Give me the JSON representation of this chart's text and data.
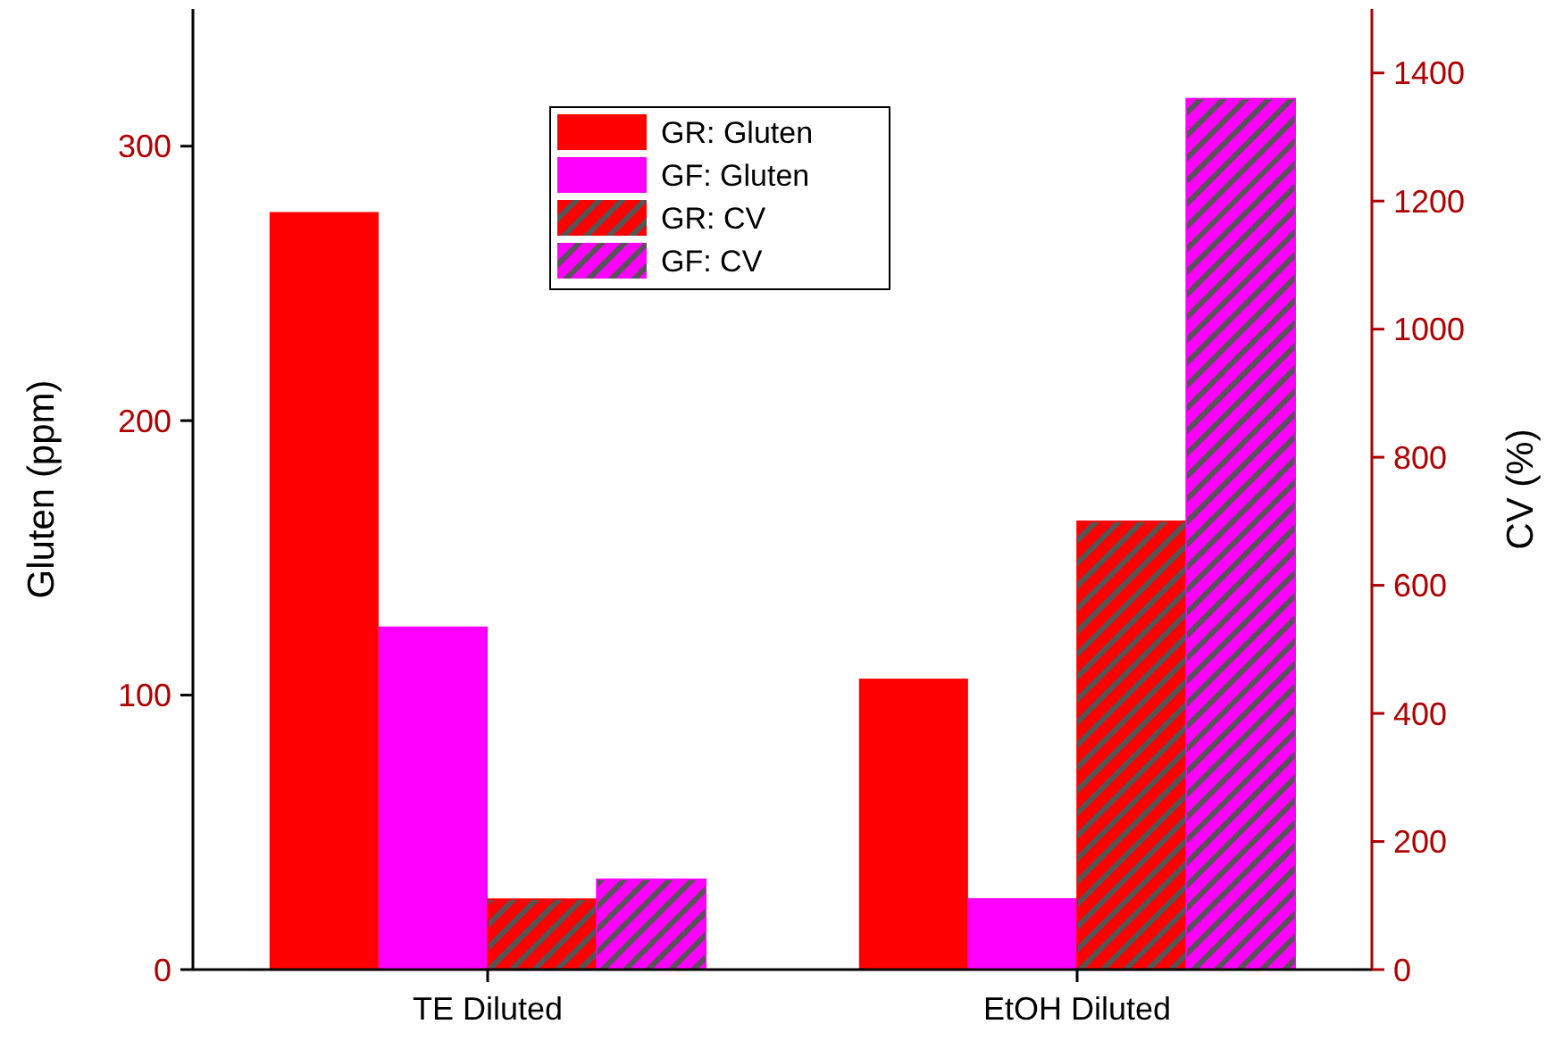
{
  "chart_data": {
    "type": "bar",
    "categories": [
      "TE Diluted",
      "EtOH Diluted"
    ],
    "series": [
      {
        "name": "GR: Gluten",
        "color": "#ff0000",
        "values": [
          276,
          106
        ]
      },
      {
        "name": "GF: Gluten",
        "color": "#ff00ff",
        "values": [
          125,
          26
        ]
      },
      {
        "name": "GR: CV",
        "color": "#ff0000",
        "values": [
          110,
          700
        ],
        "axis": "y2"
      },
      {
        "name": "GF: CV",
        "color": "#ff00ff",
        "values": [
          141,
          1360
        ],
        "axis": "y2"
      }
    ],
    "ylabel": "Gluten (ppm)",
    "y2label": "CV (%)",
    "ylim": [
      0,
      350
    ],
    "yticks": [
      0,
      100,
      200,
      300
    ],
    "y2lim": [
      0,
      1500
    ],
    "y2ticks": [
      0,
      200,
      400,
      600,
      800,
      1000,
      1200,
      1400
    ],
    "legend": "top",
    "grid": false
  }
}
